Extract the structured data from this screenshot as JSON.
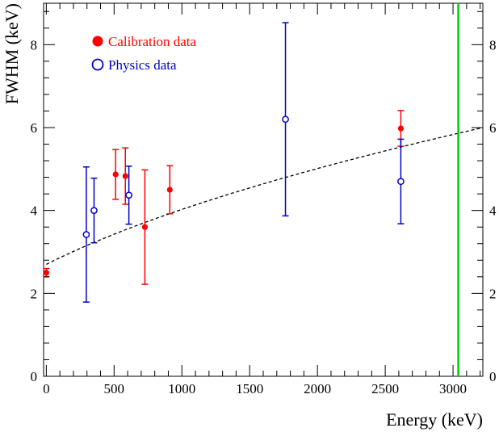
{
  "chart_data": {
    "type": "scatter",
    "title": "",
    "xlabel": "Energy (keV)",
    "ylabel": "FWHM (keV)",
    "xlim": [
      -20,
      3220
    ],
    "ylim": [
      0,
      9
    ],
    "x_ticks": [
      0,
      500,
      1000,
      1500,
      2000,
      2500,
      3000
    ],
    "y_ticks": [
      0,
      2,
      4,
      6,
      8
    ],
    "grid": false,
    "legend_position": "top-left",
    "series": [
      {
        "name": "Calibration data",
        "marker": "filled-circle",
        "color": "#ff0000",
        "points": [
          {
            "x": 0,
            "y": 2.5,
            "err": 0.1
          },
          {
            "x": 511,
            "y": 4.87,
            "err": 0.6
          },
          {
            "x": 583,
            "y": 4.83,
            "err": 0.68
          },
          {
            "x": 727,
            "y": 3.6,
            "err": 1.38
          },
          {
            "x": 911,
            "y": 4.5,
            "err": 0.58
          },
          {
            "x": 2615,
            "y": 5.98,
            "err": 0.43
          }
        ]
      },
      {
        "name": "Physics data",
        "marker": "open-circle",
        "color": "#0000cc",
        "points": [
          {
            "x": 295,
            "y": 3.42,
            "err": 1.63
          },
          {
            "x": 352,
            "y": 4.0,
            "err": 0.78
          },
          {
            "x": 609,
            "y": 4.37,
            "err": 0.7
          },
          {
            "x": 1764,
            "y": 6.2,
            "err": 2.33
          },
          {
            "x": 2615,
            "y": 4.7,
            "err": 1.02
          }
        ]
      }
    ],
    "fit_curve": {
      "style": "dashed",
      "color": "#000000",
      "form": "sqrt(a^2 + b^2*E)",
      "a": 2.7,
      "b": 0.0944,
      "x_range": [
        0,
        3200
      ]
    },
    "vertical_line": {
      "x": 3039,
      "color": "#00cc00"
    }
  }
}
